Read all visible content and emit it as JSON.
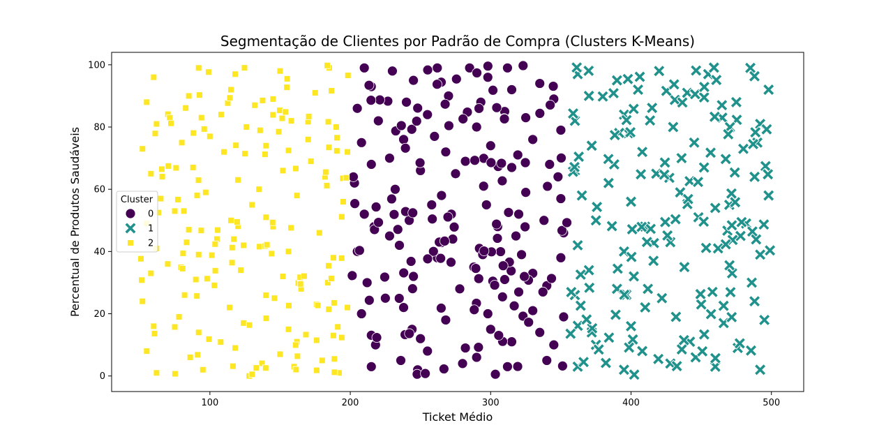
{
  "chart_data": {
    "type": "scatter",
    "title": "Segmentação de Clientes por Padrão de Compra (Clusters K-Means)",
    "xlabel": "Ticket Médio",
    "ylabel": "Percentual de Produtos Saudáveis",
    "xlim": [
      30,
      523
    ],
    "ylim": [
      -5,
      104
    ],
    "xticks": [
      100,
      200,
      300,
      400,
      500
    ],
    "yticks": [
      0,
      20,
      40,
      60,
      80,
      100
    ],
    "grid": false,
    "legend": {
      "title": "Cluster",
      "placement": "center-left"
    },
    "series": [
      {
        "name": "0",
        "marker": "circle",
        "color": "#440154",
        "x_range": [
          200,
          355
        ],
        "y_range": [
          0,
          100
        ],
        "points": [
          [
            210,
            99
          ],
          [
            230,
            98
          ],
          [
            262,
            99
          ],
          [
            285,
            99
          ],
          [
            312,
            99
          ],
          [
            215,
            93
          ],
          [
            245,
            95
          ],
          [
            298,
            96
          ],
          [
            335,
            94
          ],
          [
            205,
            86
          ],
          [
            240,
            88
          ],
          [
            270,
            90
          ],
          [
            310,
            85
          ],
          [
            345,
            89
          ],
          [
            220,
            82
          ],
          [
            255,
            84
          ],
          [
            290,
            80
          ],
          [
            325,
            83
          ],
          [
            350,
            79
          ],
          [
            208,
            75
          ],
          [
            238,
            76
          ],
          [
            268,
            72
          ],
          [
            300,
            74
          ],
          [
            330,
            76
          ],
          [
            215,
            68
          ],
          [
            250,
            66
          ],
          [
            282,
            69
          ],
          [
            315,
            67
          ],
          [
            342,
            68
          ],
          [
            203,
            62
          ],
          [
            232,
            60
          ],
          [
            265,
            58
          ],
          [
            295,
            61
          ],
          [
            325,
            59
          ],
          [
            350,
            57
          ],
          [
            210,
            52
          ],
          [
            242,
            50
          ],
          [
            272,
            52
          ],
          [
            305,
            48
          ],
          [
            338,
            50
          ],
          [
            205,
            40
          ],
          [
            235,
            42
          ],
          [
            262,
            38
          ],
          [
            292,
            41
          ],
          [
            322,
            39
          ],
          [
            350,
            38
          ],
          [
            212,
            30
          ],
          [
            245,
            32
          ],
          [
            278,
            28
          ],
          [
            310,
            31
          ],
          [
            340,
            29
          ],
          [
            208,
            20
          ],
          [
            238,
            22
          ],
          [
            268,
            18
          ],
          [
            298,
            20
          ],
          [
            330,
            21
          ],
          [
            352,
            19
          ],
          [
            218,
            10
          ],
          [
            250,
            12
          ],
          [
            282,
            9
          ],
          [
            315,
            11
          ],
          [
            345,
            10
          ],
          [
            215,
            3
          ],
          [
            248,
            2
          ],
          [
            280,
            4
          ],
          [
            312,
            3
          ],
          [
            340,
            5
          ],
          [
            228,
            45
          ],
          [
            258,
            55
          ],
          [
            288,
            35
          ],
          [
            318,
            45
          ],
          [
            348,
            64
          ],
          [
            225,
            25
          ],
          [
            255,
            8
          ],
          [
            300,
            15
          ],
          [
            335,
            14
          ],
          [
            275,
            65
          ],
          [
            320,
            52
          ],
          [
            260,
            77
          ],
          [
            228,
            70
          ],
          [
            293,
            88
          ],
          [
            315,
            92
          ],
          [
            244,
            15
          ],
          [
            330,
            33
          ],
          [
            273,
            44
          ],
          [
            297,
            55
          ],
          [
            352,
            46
          ],
          [
            217,
            48
          ],
          [
            236,
            5
          ],
          [
            290,
            6
          ],
          [
            320,
            27
          ]
        ]
      },
      {
        "name": "1",
        "marker": "x",
        "color": "#21918c",
        "x_range": [
          355,
          500
        ],
        "y_range": [
          0,
          100
        ],
        "points": [
          [
            362,
            97
          ],
          [
            390,
            95
          ],
          [
            420,
            98
          ],
          [
            455,
            97
          ],
          [
            485,
            99
          ],
          [
            370,
            90
          ],
          [
            405,
            92
          ],
          [
            440,
            91
          ],
          [
            475,
            88
          ],
          [
            498,
            92
          ],
          [
            360,
            82
          ],
          [
            395,
            84
          ],
          [
            430,
            80
          ],
          [
            465,
            83
          ],
          [
            492,
            81
          ],
          [
            372,
            74
          ],
          [
            408,
            72
          ],
          [
            445,
            75
          ],
          [
            480,
            73
          ],
          [
            360,
            66
          ],
          [
            388,
            68
          ],
          [
            418,
            65
          ],
          [
            452,
            67
          ],
          [
            488,
            64
          ],
          [
            365,
            58
          ],
          [
            400,
            56
          ],
          [
            435,
            59
          ],
          [
            470,
            55
          ],
          [
            498,
            58
          ],
          [
            375,
            50
          ],
          [
            410,
            48
          ],
          [
            448,
            51
          ],
          [
            482,
            49
          ],
          [
            362,
            42
          ],
          [
            395,
            40
          ],
          [
            428,
            43
          ],
          [
            462,
            41
          ],
          [
            492,
            39
          ],
          [
            370,
            34
          ],
          [
            402,
            32
          ],
          [
            438,
            35
          ],
          [
            472,
            33
          ],
          [
            360,
            26
          ],
          [
            390,
            28
          ],
          [
            422,
            25
          ],
          [
            458,
            27
          ],
          [
            488,
            24
          ],
          [
            368,
            18
          ],
          [
            400,
            16
          ],
          [
            432,
            19
          ],
          [
            466,
            17
          ],
          [
            495,
            18
          ],
          [
            375,
            10
          ],
          [
            408,
            8
          ],
          [
            442,
            11
          ],
          [
            476,
            9
          ],
          [
            362,
            3
          ],
          [
            395,
            2
          ],
          [
            428,
            4
          ],
          [
            460,
            3
          ],
          [
            492,
            2
          ],
          [
            384,
            62
          ],
          [
            416,
            37
          ],
          [
            450,
            23
          ],
          [
            478,
            45
          ],
          [
            398,
            78
          ],
          [
            436,
            70
          ],
          [
            460,
            54
          ],
          [
            486,
            30
          ],
          [
            372,
            14
          ],
          [
            412,
            28
          ],
          [
            446,
            6
          ],
          [
            490,
            75
          ]
        ]
      },
      {
        "name": "2",
        "marker": "square",
        "color": "#fde725",
        "x_range": [
          50,
          200
        ],
        "y_range": [
          0,
          100
        ],
        "points": [
          [
            60,
            96
          ],
          [
            92,
            99
          ],
          [
            118,
            97
          ],
          [
            150,
            98
          ],
          [
            185,
            99
          ],
          [
            55,
            88
          ],
          [
            85,
            90
          ],
          [
            115,
            92
          ],
          [
            145,
            89
          ],
          [
            175,
            91
          ],
          [
            62,
            81
          ],
          [
            94,
            83
          ],
          [
            126,
            80
          ],
          [
            158,
            82
          ],
          [
            190,
            80
          ],
          [
            52,
            73
          ],
          [
            80,
            75
          ],
          [
            110,
            72
          ],
          [
            140,
            74
          ],
          [
            170,
            76
          ],
          [
            198,
            72
          ],
          [
            58,
            65
          ],
          [
            88,
            67
          ],
          [
            120,
            63
          ],
          [
            152,
            66
          ],
          [
            182,
            64
          ],
          [
            65,
            57
          ],
          [
            97,
            59
          ],
          [
            130,
            55
          ],
          [
            162,
            58
          ],
          [
            195,
            56
          ],
          [
            55,
            49
          ],
          [
            85,
            47
          ],
          [
            115,
            50
          ],
          [
            145,
            48
          ],
          [
            178,
            46
          ],
          [
            62,
            41
          ],
          [
            92,
            39
          ],
          [
            124,
            42
          ],
          [
            156,
            40
          ],
          [
            188,
            38
          ],
          [
            58,
            33
          ],
          [
            90,
            31
          ],
          [
            122,
            34
          ],
          [
            152,
            32
          ],
          [
            184,
            30
          ],
          [
            52,
            24
          ],
          [
            82,
            26
          ],
          [
            114,
            22
          ],
          [
            146,
            25
          ],
          [
            176,
            23
          ],
          [
            198,
            22
          ],
          [
            60,
            16
          ],
          [
            92,
            14
          ],
          [
            124,
            17
          ],
          [
            156,
            15
          ],
          [
            188,
            13
          ],
          [
            55,
            8
          ],
          [
            86,
            6
          ],
          [
            118,
            9
          ],
          [
            150,
            7
          ],
          [
            180,
            5
          ],
          [
            62,
            1
          ],
          [
            95,
            2
          ],
          [
            128,
            0
          ],
          [
            160,
            3
          ],
          [
            192,
            1
          ],
          [
            75,
            53
          ],
          [
            105,
            44
          ],
          [
            135,
            60
          ],
          [
            165,
            28
          ],
          [
            70,
            36
          ],
          [
            100,
            77
          ],
          [
            132,
            87
          ],
          [
            162,
            11
          ],
          [
            78,
            19
          ],
          [
            108,
            84
          ],
          [
            140,
            51
          ],
          [
            172,
            69
          ]
        ]
      }
    ]
  }
}
